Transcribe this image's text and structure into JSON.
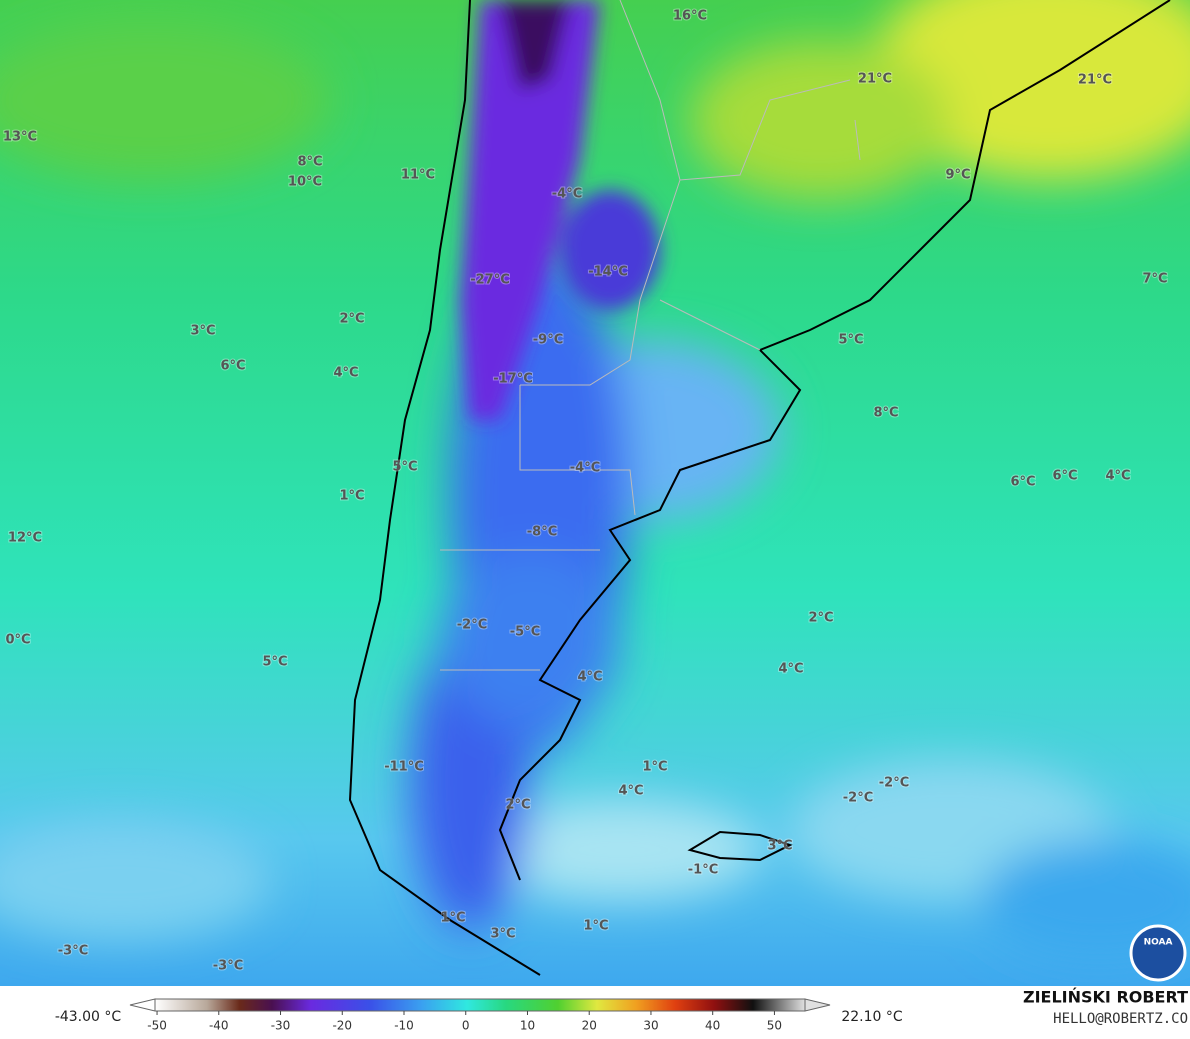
{
  "map": {
    "labels": [
      "16°C",
      "21°C",
      "21°C",
      "13°C",
      "8°C",
      "10°C",
      "11°C",
      "-4°C",
      "9°C",
      "-27°C",
      "-14°C",
      "7°C",
      "3°C",
      "2°C",
      "-9°C",
      "5°C",
      "6°C",
      "4°C",
      "-17°C",
      "8°C",
      "5°C",
      "-4°C",
      "1°C",
      "6°C",
      "6°C",
      "4°C",
      "-8°C",
      "12°C",
      "2°C",
      "-2°C",
      "-5°C",
      "0°C",
      "5°C",
      "4°C",
      "4°C",
      "1°C",
      "-11°C",
      "-2°C",
      "-2°C",
      "4°C",
      "2°C",
      "3°C",
      "-1°C",
      "1°C",
      "1°C",
      "3°C",
      "-3°C",
      "-3°C"
    ],
    "logo_text": "NOAA"
  },
  "colorbar": {
    "min_label": "-43.00 °C",
    "max_label": "22.10 °C",
    "lim": [
      -56,
      59
    ],
    "ticks": [
      -50,
      -40,
      -30,
      -20,
      -10,
      0,
      10,
      20,
      30,
      40,
      50
    ]
  },
  "credit": {
    "name": "ZIELIŃSKI ROBERT",
    "email": "HELLO@ROBERTZ.CO"
  }
}
